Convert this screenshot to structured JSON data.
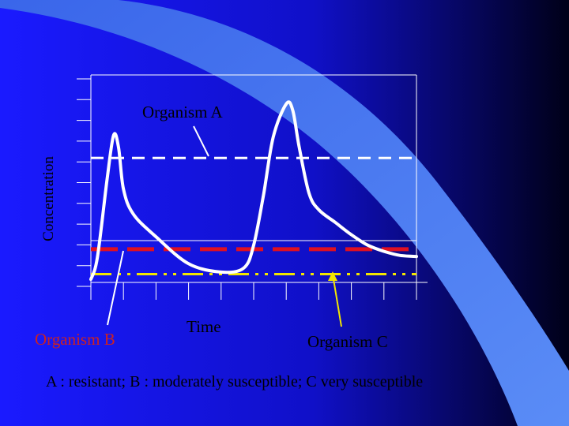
{
  "colors": {
    "background": "#1a1aff",
    "sweep": "#4a78ee",
    "curve": "#ffffff",
    "threshold_a": "#ffffff",
    "threshold_b": "#e01020",
    "threshold_c": "#f2e600"
  },
  "chart_data": {
    "type": "line",
    "title": "",
    "xlabel": "Time",
    "ylabel": "Concentration",
    "xlim": [
      0,
      10
    ],
    "ylim": [
      0,
      10
    ],
    "grid": false,
    "series": [
      {
        "x": [
          0,
          0.2,
          0.5,
          0.7,
          0.85,
          1.0,
          1.3,
          2.0,
          3.0,
          4.0,
          4.7,
          5.0,
          5.3,
          5.6,
          6.0,
          6.2,
          6.4,
          6.7,
          7.0,
          7.5,
          8.0,
          8.5,
          9.0,
          9.5,
          10.0
        ],
        "y": [
          0.15,
          1.2,
          5.0,
          7.1,
          6.5,
          4.5,
          3.3,
          2.2,
          0.9,
          0.5,
          0.7,
          1.8,
          4.2,
          7.0,
          8.6,
          8.3,
          6.5,
          4.3,
          3.5,
          2.9,
          2.3,
          1.8,
          1.5,
          1.3,
          1.25
        ]
      }
    ],
    "thresholds": [
      {
        "y": 6.0,
        "style": "dashed",
        "color": "#ffffff"
      },
      {
        "y": 1.6,
        "style": "long-dash",
        "color": "#e01020"
      },
      {
        "y": 0.4,
        "style": "dash-dot",
        "color": "#f2e600"
      }
    ]
  },
  "labels": {
    "organism_a": "Organism A",
    "organism_b": "Organism B",
    "organism_c": "Organism C"
  },
  "caption": "A : resistant;  B : moderately susceptible;  C very susceptible"
}
